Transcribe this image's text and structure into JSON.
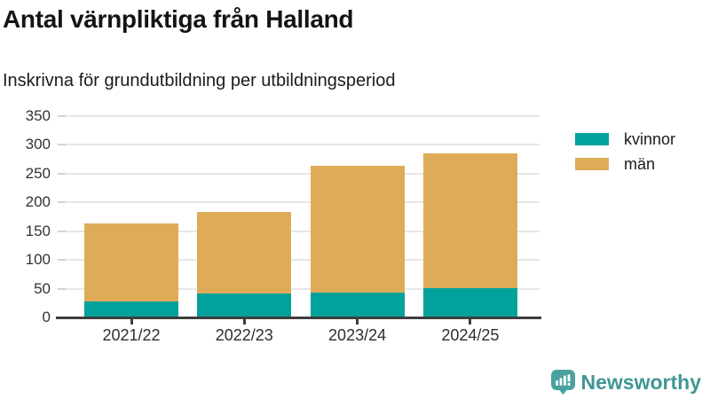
{
  "header": {
    "title": "Antal värnpliktiga från Halland",
    "subtitle": "Inskrivna för grundutbildning per utbildningsperiod"
  },
  "chart_data": {
    "type": "bar",
    "stacked": true,
    "title": "Antal värnpliktiga från Halland",
    "subtitle": "Inskrivna för grundutbildning per utbildningsperiod",
    "categories": [
      "2021/22",
      "2022/23",
      "2023/24",
      "2024/25"
    ],
    "series": [
      {
        "name": "kvinnor",
        "color": "#00a29b",
        "values": [
          27,
          41,
          43,
          51
        ]
      },
      {
        "name": "män",
        "color": "#deac58",
        "values": [
          136,
          142,
          220,
          234
        ]
      }
    ],
    "stack_totals": [
      163,
      183,
      263,
      285
    ],
    "xlabel": "",
    "ylabel": "",
    "ylim": [
      0,
      350
    ],
    "yticks": [
      0,
      50,
      100,
      150,
      200,
      250,
      300,
      350
    ],
    "grid": "horizontal",
    "legend_position": "right"
  },
  "legend": {
    "items": [
      "kvinnor",
      "män"
    ]
  },
  "footer": {
    "brand": "Newsworthy"
  },
  "colors": {
    "kvinnor": "#00a29b",
    "man": "#deac58",
    "brand_text": "#3f9793",
    "brand_icon": "#4aa19e",
    "axis_text": "#333333",
    "axis_line": "#3d3d3d",
    "gridline": "#e7e7e7"
  }
}
